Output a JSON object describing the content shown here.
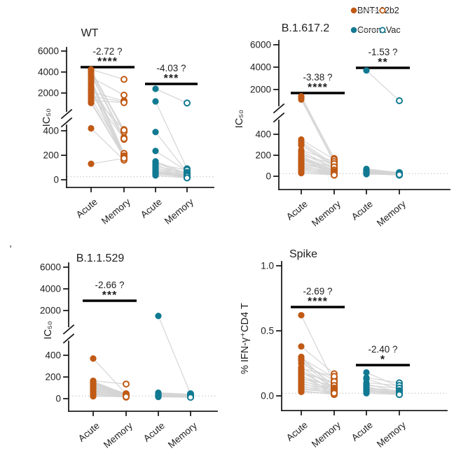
{
  "figure": {
    "legend": {
      "entries": [
        {
          "label": "BNT162b2",
          "color": "#C05A16"
        },
        {
          "label": "CoronaVac",
          "color": "#117A92"
        }
      ]
    },
    "stray_mark": "'",
    "colors": {
      "bnt162b2": "#C05A16",
      "coronavac": "#117A92",
      "pair_line": "#D4D4D4",
      "threshold_line": "#CBCBCB",
      "axis": "#1E1E1E",
      "significance_bar": "#000000"
    }
  },
  "chart_data": [
    {
      "id": "wt",
      "type": "paired-scatter",
      "title": "WT",
      "ylabel": "IC₅₀",
      "broken_axis": true,
      "upper_axis": {
        "tick_labels": [
          "2000",
          "4000",
          "6000"
        ],
        "range": [
          1000,
          6000
        ]
      },
      "lower_axis": {
        "tick_labels": [
          "0",
          "200",
          "400"
        ],
        "range": [
          0,
          500
        ]
      },
      "threshold_line": 25,
      "categories": [
        "Acute",
        "Memory",
        "Acute",
        "Memory"
      ],
      "series": [
        {
          "name": "BNT162b2",
          "annotation": {
            "fold": "-2.72 ?",
            "stars": "****"
          },
          "pairs": [
            [
              4250,
              3300
            ],
            [
              4200,
              400
            ],
            [
              4100,
              390
            ],
            [
              4000,
              410
            ],
            [
              3900,
              345
            ],
            [
              3700,
              330
            ],
            [
              3500,
              1800
            ],
            [
              3300,
              215
            ],
            [
              3100,
              200
            ],
            [
              2900,
              190
            ],
            [
              2700,
              340
            ],
            [
              2500,
              180
            ],
            [
              2300,
              170
            ],
            [
              2100,
              1250
            ],
            [
              2000,
              405
            ],
            [
              1900,
              335
            ],
            [
              1700,
              1150
            ],
            [
              1500,
              215
            ],
            [
              1300,
              1080
            ],
            [
              1150,
              195
            ],
            [
              1050,
              185
            ],
            [
              420,
              160
            ],
            [
              130,
              175
            ]
          ]
        },
        {
          "name": "CoronaVac",
          "annotation": {
            "fold": "-4.03 ?",
            "stars": "***"
          },
          "pairs": [
            [
              2400,
              1050
            ],
            [
              1200,
              90
            ],
            [
              390,
              60
            ],
            [
              235,
              70
            ],
            [
              150,
              50
            ],
            [
              140,
              40
            ],
            [
              130,
              80
            ],
            [
              120,
              30
            ],
            [
              110,
              60
            ],
            [
              100,
              25
            ],
            [
              95,
              50
            ],
            [
              85,
              20
            ],
            [
              80,
              40
            ],
            [
              70,
              30
            ],
            [
              65,
              15
            ],
            [
              60,
              35
            ],
            [
              55,
              25
            ],
            [
              50,
              20
            ],
            [
              45,
              30
            ],
            [
              35,
              15
            ]
          ]
        }
      ]
    },
    {
      "id": "delta",
      "type": "paired-scatter",
      "title": "B.1.617.2",
      "ylabel": "IC₅₀",
      "broken_axis": true,
      "upper_axis": {
        "tick_labels": [
          "2000",
          "4000",
          "6000"
        ],
        "range": [
          1000,
          6000
        ]
      },
      "lower_axis": {
        "tick_labels": [
          "0",
          "200",
          "400"
        ],
        "range": [
          0,
          500
        ]
      },
      "threshold_line": 25,
      "categories": [
        "Acute",
        "Memory",
        "Acute",
        "Memory"
      ],
      "series": [
        {
          "name": "BNT162b2",
          "annotation": {
            "fold": "-3.38 ?",
            "stars": "****"
          },
          "pairs": [
            [
              1400,
              170
            ],
            [
              1250,
              150
            ],
            [
              1100,
              130
            ],
            [
              350,
              160
            ],
            [
              330,
              110
            ],
            [
              310,
              100
            ],
            [
              295,
              90
            ],
            [
              250,
              140
            ],
            [
              240,
              80
            ],
            [
              220,
              70
            ],
            [
              200,
              120
            ],
            [
              190,
              60
            ],
            [
              180,
              50
            ],
            [
              170,
              40
            ],
            [
              160,
              30
            ],
            [
              150,
              90
            ],
            [
              140,
              25
            ],
            [
              130,
              60
            ],
            [
              120,
              45
            ],
            [
              110,
              20
            ],
            [
              100,
              35
            ],
            [
              90,
              15
            ],
            [
              80,
              30
            ],
            [
              70,
              10
            ],
            [
              60,
              25
            ],
            [
              45,
              18
            ],
            [
              30,
              12
            ]
          ]
        },
        {
          "name": "CoronaVac",
          "annotation": {
            "fold": "-1.53 ?",
            "stars": "**"
          },
          "pairs": [
            [
              3700,
              1000
            ],
            [
              70,
              35
            ],
            [
              65,
              30
            ],
            [
              60,
              25
            ],
            [
              55,
              20
            ],
            [
              52,
              30
            ],
            [
              48,
              15
            ],
            [
              45,
              25
            ],
            [
              42,
              12
            ],
            [
              40,
              20
            ],
            [
              36,
              16
            ],
            [
              33,
              24
            ],
            [
              30,
              10
            ],
            [
              27,
              18
            ],
            [
              24,
              12
            ],
            [
              20,
              15
            ]
          ]
        }
      ]
    },
    {
      "id": "omicron",
      "type": "paired-scatter",
      "title": "B.1.1.529",
      "ylabel": "IC₅₀",
      "broken_axis": true,
      "upper_axis": {
        "tick_labels": [
          "2000",
          "4000",
          "6000"
        ],
        "range": [
          1000,
          6000
        ]
      },
      "lower_axis": {
        "tick_labels": [
          "0",
          "200",
          "400"
        ],
        "range": [
          0,
          500
        ]
      },
      "threshold_line": 25,
      "categories": [
        "Acute",
        "Memory",
        "Acute",
        "Memory"
      ],
      "series": [
        {
          "name": "BNT162b2",
          "annotation": {
            "fold": "-2.66 ?",
            "stars": "***"
          },
          "pairs": [
            [
              370,
              45
            ],
            [
              165,
              135
            ],
            [
              160,
              40
            ],
            [
              155,
              30
            ],
            [
              150,
              45
            ],
            [
              145,
              25
            ],
            [
              140,
              35
            ],
            [
              135,
              20
            ],
            [
              128,
              40
            ],
            [
              120,
              30
            ],
            [
              112,
              25
            ],
            [
              105,
              35
            ],
            [
              98,
              20
            ],
            [
              92,
              30
            ],
            [
              85,
              15
            ],
            [
              78,
              25
            ],
            [
              70,
              20
            ],
            [
              62,
              30
            ],
            [
              55,
              15
            ],
            [
              48,
              25
            ],
            [
              40,
              20
            ],
            [
              30,
              15
            ],
            [
              22,
              18
            ]
          ]
        },
        {
          "name": "CoronaVac",
          "annotation": null,
          "pairs": [
            [
              1500,
              45
            ],
            [
              55,
              40
            ],
            [
              50,
              30
            ],
            [
              46,
              25
            ],
            [
              42,
              35
            ],
            [
              38,
              20
            ],
            [
              35,
              30
            ],
            [
              31,
              15
            ],
            [
              28,
              25
            ],
            [
              25,
              20
            ],
            [
              22,
              15
            ],
            [
              19,
              18
            ],
            [
              16,
              12
            ]
          ]
        }
      ]
    },
    {
      "id": "spike",
      "type": "paired-scatter",
      "title": "Spike",
      "ylabel": "% IFN-γ⁺CD4 T",
      "broken_axis": false,
      "axis": {
        "tick_labels": [
          "0.0",
          "0.5",
          "1.0"
        ],
        "range": [
          0,
          1
        ]
      },
      "threshold_line": 0.02,
      "categories": [
        "Acute",
        "Memory",
        "Acute",
        "Memory"
      ],
      "series": [
        {
          "name": "BNT162b2",
          "annotation": {
            "fold": "-2.69 ?",
            "stars": "****"
          },
          "pairs": [
            [
              0.62,
              0.1
            ],
            [
              0.38,
              0.17
            ],
            [
              0.3,
              0.05
            ],
            [
              0.29,
              0.14
            ],
            [
              0.28,
              0.08
            ],
            [
              0.27,
              0.04
            ],
            [
              0.25,
              0.12
            ],
            [
              0.22,
              0.06
            ],
            [
              0.21,
              0.15
            ],
            [
              0.2,
              0.03
            ],
            [
              0.19,
              0.09
            ],
            [
              0.18,
              0.05
            ],
            [
              0.17,
              0.11
            ],
            [
              0.16,
              0.02
            ],
            [
              0.15,
              0.07
            ],
            [
              0.14,
              0.04
            ],
            [
              0.13,
              0.08
            ],
            [
              0.12,
              0.03
            ],
            [
              0.11,
              0.06
            ],
            [
              0.1,
              0.02
            ],
            [
              0.09,
              0.05
            ],
            [
              0.08,
              0.01
            ],
            [
              0.07,
              0.04
            ],
            [
              0.06,
              0.02
            ],
            [
              0.05,
              0.03
            ],
            [
              0.04,
              0.01
            ],
            [
              0.03,
              0.02
            ]
          ]
        },
        {
          "name": "CoronaVac",
          "annotation": {
            "fold": "-2.40 ?",
            "stars": "*"
          },
          "pairs": [
            [
              0.18,
              0.07
            ],
            [
              0.14,
              0.1
            ],
            [
              0.13,
              0.05
            ],
            [
              0.1,
              0.08
            ],
            [
              0.09,
              0.03
            ],
            [
              0.08,
              0.06
            ],
            [
              0.07,
              0.02
            ],
            [
              0.06,
              0.04
            ],
            [
              0.055,
              0.03
            ],
            [
              0.05,
              0.01
            ],
            [
              0.045,
              0.02
            ],
            [
              0.04,
              0.03
            ],
            [
              0.035,
              0.01
            ],
            [
              0.03,
              0.02
            ],
            [
              0.02,
              0.01
            ]
          ]
        }
      ]
    }
  ]
}
